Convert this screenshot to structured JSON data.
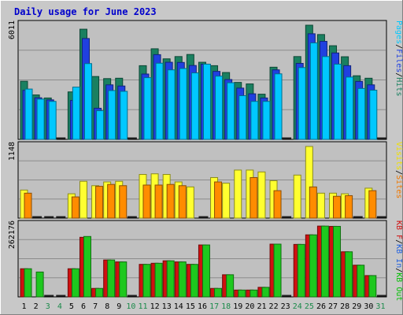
{
  "chart_data": {
    "type": "bar",
    "title": "Daily usage for June 2023",
    "days": [
      "1",
      "2",
      "3",
      "4",
      "5",
      "6",
      "7",
      "8",
      "9",
      "10",
      "11",
      "12",
      "13",
      "14",
      "15",
      "16",
      "17",
      "18",
      "19",
      "20",
      "21",
      "22",
      "23",
      "24",
      "25",
      "26",
      "27",
      "28",
      "29",
      "30",
      "31"
    ],
    "weekend_days": [
      "3",
      "4",
      "10",
      "11",
      "17",
      "18",
      "24",
      "25",
      "31"
    ],
    "panels": [
      {
        "max_label": "6011",
        "ymax": 6011,
        "legend": [
          {
            "text": "Pages",
            "color": "#00c8ff"
          },
          {
            "text": "/",
            "color": "#000000"
          },
          {
            "text": "Files",
            "color": "#2040e0"
          },
          {
            "text": "/",
            "color": "#000000"
          },
          {
            "text": "Hits",
            "color": "#1a8060"
          }
        ],
        "series": [
          {
            "name": "Hits",
            "color": "#1a8060",
            "values": [
              3060,
              2340,
              2180,
              0,
              2500,
              5800,
              3310,
              3200,
              3220,
              0,
              3880,
              4770,
              4240,
              4360,
              4470,
              4060,
              3880,
              3520,
              3000,
              2920,
              2380,
              3800,
              0,
              4360,
              6011,
              5520,
              4930,
              4350,
              3350,
              3220,
              0
            ]
          },
          {
            "name": "Files",
            "color": "#2040e0",
            "values": [
              2580,
              2190,
              2080,
              0,
              2050,
              5310,
              1640,
              2870,
              2810,
              0,
              3440,
              4460,
              4060,
              4050,
              3890,
              3960,
              3580,
              3150,
              2700,
              2400,
              2180,
              3660,
              0,
              4000,
              5560,
              5160,
              4550,
              3880,
              3050,
              2870,
              0
            ]
          },
          {
            "name": "Pages",
            "color": "#00c8ff",
            "values": [
              2650,
              2120,
              2000,
              0,
              2750,
              3990,
              1510,
              2570,
              2530,
              0,
              3250,
              4010,
              3660,
              3730,
              3500,
              3960,
              3330,
              2980,
              2300,
              2000,
              2000,
              3450,
              0,
              3780,
              5080,
              4360,
              3960,
              3280,
              2680,
              2590,
              0
            ]
          }
        ]
      },
      {
        "max_label": "1148",
        "ymax": 1148,
        "legend": [
          {
            "text": "Visits",
            "color": "#f0e000"
          },
          {
            "text": "/",
            "color": "#000000"
          },
          {
            "text": "Sites",
            "color": "#f07800"
          }
        ],
        "series": [
          {
            "name": "Visits",
            "color": "#ffff30",
            "values": [
              450,
              0,
              0,
              0,
              390,
              590,
              520,
              580,
              590,
              0,
              700,
              710,
              700,
              580,
              500,
              0,
              650,
              560,
              770,
              770,
              740,
              600,
              0,
              690,
              1148,
              400,
              400,
              390,
              0,
              480,
              0
            ]
          },
          {
            "name": "Sites",
            "color": "#ff8c00",
            "values": [
              400,
              0,
              0,
              0,
              340,
              0,
              510,
              540,
              520,
              0,
              530,
              530,
              540,
              520,
              0,
              0,
              580,
              0,
              0,
              650,
              0,
              440,
              0,
              0,
              500,
              0,
              350,
              360,
              0,
              440,
              0
            ]
          }
        ]
      },
      {
        "max_label": "262176",
        "ymax": 262176,
        "legend": [
          {
            "text": "KB F",
            "color": "#d01010"
          },
          {
            "text": "/",
            "color": "#000000"
          },
          {
            "text": "KB In",
            "color": "#2060e0"
          },
          {
            "text": "/",
            "color": "#000000"
          },
          {
            "text": "KB Out",
            "color": "#00c000"
          }
        ],
        "series": [
          {
            "name": "KB F",
            "color": "#d01010",
            "values": [
              103000,
              0,
              0,
              0,
              103000,
              218000,
              31000,
              135000,
              128000,
              0,
              119000,
              123000,
              132000,
              128000,
              119000,
              190000,
              31000,
              81000,
              25000,
              25000,
              35000,
              193000,
              0,
              192000,
              227000,
              259000,
              258000,
              165000,
              116000,
              78000,
              0
            ]
          },
          {
            "name": "KB Out",
            "color": "#1ec81e",
            "values": [
              103000,
              91000,
              0,
              0,
              103000,
              221000,
              31000,
              135000,
              128000,
              0,
              119000,
              123000,
              132000,
              128000,
              119000,
              190000,
              31000,
              81000,
              25000,
              25000,
              35000,
              193000,
              0,
              192000,
              227000,
              259000,
              258000,
              165000,
              116000,
              78000,
              0
            ]
          }
        ]
      }
    ]
  }
}
